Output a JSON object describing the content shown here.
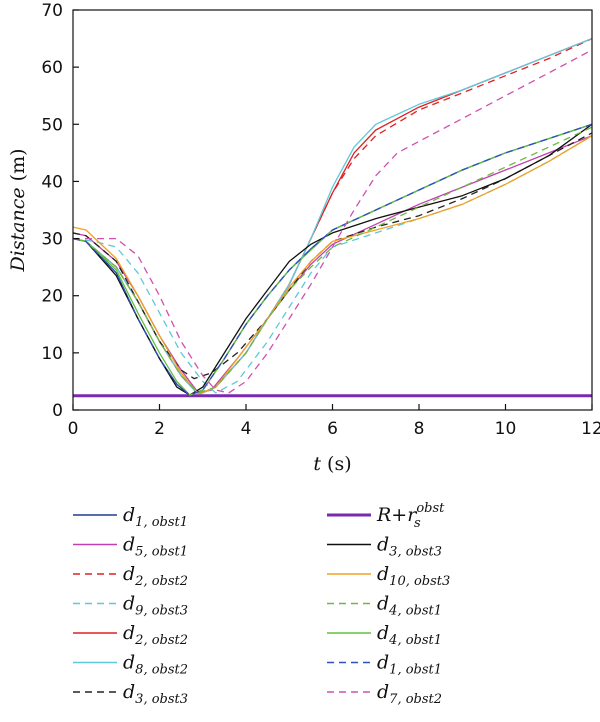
{
  "chart_data": {
    "type": "line",
    "title": "",
    "xlabel": {
      "symbol": "t",
      "unit": "(s)"
    },
    "ylabel": {
      "text": "Distance",
      "unit": "(m)"
    },
    "xlim": [
      0,
      12
    ],
    "ylim": [
      0,
      70
    ],
    "xticks": [
      0,
      2,
      4,
      6,
      8,
      10,
      12
    ],
    "yticks": [
      0,
      10,
      20,
      30,
      40,
      50,
      60,
      70
    ],
    "grid": false,
    "legend_position": "bottom",
    "series": [
      {
        "name": "d1,obst1",
        "label": "d",
        "sub": "1, obst1",
        "color": "#1f3f8f",
        "dash": "solid",
        "points": [
          [
            0,
            30
          ],
          [
            0.3,
            29.5
          ],
          [
            1,
            24
          ],
          [
            1.5,
            16
          ],
          [
            2,
            9
          ],
          [
            2.4,
            4.5
          ],
          [
            2.7,
            2.6
          ],
          [
            3,
            3.5
          ],
          [
            3.5,
            9
          ],
          [
            4,
            15
          ],
          [
            4.5,
            20
          ],
          [
            5,
            24.5
          ],
          [
            5.5,
            28.2
          ],
          [
            6,
            31.5
          ],
          [
            7,
            35
          ],
          [
            8,
            38.5
          ],
          [
            9,
            42
          ],
          [
            10,
            45
          ],
          [
            11,
            47.5
          ],
          [
            12,
            50
          ]
        ]
      },
      {
        "name": "d5,obst1",
        "label": "d",
        "sub": "5, obst1",
        "color": "#c040b0",
        "dash": "solid",
        "points": [
          [
            0,
            31
          ],
          [
            0.3,
            30.5
          ],
          [
            1,
            26
          ],
          [
            1.5,
            20
          ],
          [
            2,
            13
          ],
          [
            2.5,
            7
          ],
          [
            2.9,
            3
          ],
          [
            3.2,
            3.5
          ],
          [
            3.8,
            9
          ],
          [
            4.5,
            16
          ],
          [
            5,
            21
          ],
          [
            5.5,
            25.5
          ],
          [
            6,
            29
          ],
          [
            7,
            32.5
          ],
          [
            8,
            36
          ],
          [
            9,
            39
          ],
          [
            10,
            42
          ],
          [
            11,
            45
          ],
          [
            12,
            48
          ]
        ]
      },
      {
        "name": "d2,obst2",
        "label": "d",
        "sub": "2, obst2",
        "color": "#e02020",
        "dash": "dash",
        "points": [
          [
            0,
            30
          ],
          [
            0.3,
            29.5
          ],
          [
            1,
            25
          ],
          [
            1.5,
            19
          ],
          [
            2,
            12
          ],
          [
            2.5,
            6
          ],
          [
            2.9,
            2.8
          ],
          [
            3.3,
            4
          ],
          [
            4,
            10
          ],
          [
            4.5,
            16
          ],
          [
            5,
            22
          ],
          [
            5.5,
            30
          ],
          [
            6,
            38
          ],
          [
            6.5,
            44
          ],
          [
            7,
            48
          ],
          [
            8,
            52.5
          ],
          [
            9,
            55.5
          ],
          [
            10,
            58.5
          ],
          [
            11,
            61.5
          ],
          [
            12,
            65
          ]
        ]
      },
      {
        "name": "d9,obst3",
        "label": "d",
        "sub": "9, obst3",
        "color": "#5ec8dc",
        "dash": "dash",
        "points": [
          [
            0,
            30
          ],
          [
            0.5,
            29.5
          ],
          [
            1,
            28.5
          ],
          [
            1.5,
            24
          ],
          [
            2,
            17
          ],
          [
            2.5,
            10
          ],
          [
            3,
            5
          ],
          [
            3.3,
            3
          ],
          [
            3.8,
            5
          ],
          [
            4.5,
            12
          ],
          [
            5,
            18
          ],
          [
            5.5,
            24
          ],
          [
            6,
            28.5
          ],
          [
            7,
            31
          ],
          [
            8,
            33.5
          ],
          [
            9,
            36
          ],
          [
            10,
            39.5
          ],
          [
            11,
            43.5
          ],
          [
            12,
            48
          ]
        ]
      },
      {
        "name": "d2,obst2",
        "label": "d",
        "sub": "2, obst2",
        "color": "#e02020",
        "dash": "solid",
        "points": [
          [
            0,
            30
          ],
          [
            0.3,
            29.5
          ],
          [
            1,
            25
          ],
          [
            1.5,
            19
          ],
          [
            2,
            12
          ],
          [
            2.5,
            6
          ],
          [
            2.9,
            2.7
          ],
          [
            3.3,
            4
          ],
          [
            4,
            10
          ],
          [
            4.5,
            16
          ],
          [
            5,
            22
          ],
          [
            5.5,
            30
          ],
          [
            6,
            38
          ],
          [
            6.5,
            45
          ],
          [
            7,
            49
          ],
          [
            8,
            53
          ],
          [
            9,
            56
          ],
          [
            10,
            59
          ],
          [
            11,
            62
          ],
          [
            12,
            65
          ]
        ]
      },
      {
        "name": "d8,obst2",
        "label": "d",
        "sub": "8, obst2",
        "color": "#5ec8dc",
        "dash": "solid",
        "points": [
          [
            0,
            30
          ],
          [
            0.3,
            29.5
          ],
          [
            1,
            25
          ],
          [
            1.5,
            19
          ],
          [
            2,
            12
          ],
          [
            2.5,
            6
          ],
          [
            2.9,
            2.7
          ],
          [
            3.3,
            4
          ],
          [
            4,
            10
          ],
          [
            4.5,
            16
          ],
          [
            5,
            22
          ],
          [
            5.5,
            30
          ],
          [
            6,
            39
          ],
          [
            6.5,
            46
          ],
          [
            7,
            50
          ],
          [
            8,
            53.5
          ],
          [
            9,
            56
          ],
          [
            10,
            59
          ],
          [
            11,
            62
          ],
          [
            12,
            65
          ]
        ]
      },
      {
        "name": "d3,obst3",
        "label": "d",
        "sub": "3, obst3",
        "color": "#222222",
        "dash": "dash",
        "points": [
          [
            0,
            31
          ],
          [
            0.3,
            30.5
          ],
          [
            1,
            26
          ],
          [
            1.5,
            19
          ],
          [
            2,
            12
          ],
          [
            2.5,
            7
          ],
          [
            2.8,
            5.5
          ],
          [
            3.2,
            6.5
          ],
          [
            3.8,
            10
          ],
          [
            4.5,
            16
          ],
          [
            5,
            21
          ],
          [
            5.5,
            26
          ],
          [
            6,
            29.5
          ],
          [
            7,
            32
          ],
          [
            8,
            34
          ],
          [
            9,
            37
          ],
          [
            10,
            40.5
          ],
          [
            11,
            44.5
          ],
          [
            12,
            48.5
          ]
        ]
      },
      {
        "name": "R+rs_obst",
        "label": "R+r",
        "sub": "s",
        "sup": "obst",
        "color": "#7a2ab0",
        "dash": "solid",
        "width": 3,
        "points": [
          [
            0,
            2.5
          ],
          [
            12,
            2.5
          ]
        ]
      },
      {
        "name": "d3,obst3",
        "label": "d",
        "sub": "3, obst3",
        "color": "#111111",
        "dash": "solid",
        "points": [
          [
            0,
            30
          ],
          [
            0.3,
            29.5
          ],
          [
            1,
            23.5
          ],
          [
            1.5,
            16
          ],
          [
            2,
            9
          ],
          [
            2.4,
            4
          ],
          [
            2.7,
            2.6
          ],
          [
            3,
            4
          ],
          [
            3.5,
            10
          ],
          [
            4,
            16
          ],
          [
            4.5,
            21
          ],
          [
            5,
            26
          ],
          [
            5.5,
            29
          ],
          [
            6,
            31
          ],
          [
            7,
            33.5
          ],
          [
            8,
            35.5
          ],
          [
            9,
            37.5
          ],
          [
            10,
            40.5
          ],
          [
            11,
            44.5
          ],
          [
            12,
            50
          ]
        ]
      },
      {
        "name": "d10,obst3",
        "label": "d",
        "sub": "10, obst3",
        "color": "#f0a020",
        "dash": "solid",
        "points": [
          [
            0,
            32
          ],
          [
            0.3,
            31.5
          ],
          [
            1,
            26.5
          ],
          [
            1.5,
            20
          ],
          [
            2,
            13
          ],
          [
            2.5,
            6.5
          ],
          [
            2.9,
            2.8
          ],
          [
            3.3,
            4
          ],
          [
            3.8,
            9
          ],
          [
            4.5,
            16
          ],
          [
            5,
            21.5
          ],
          [
            5.5,
            26
          ],
          [
            6,
            29.5
          ],
          [
            7,
            31.5
          ],
          [
            8,
            33.5
          ],
          [
            9,
            36
          ],
          [
            10,
            39.5
          ],
          [
            11,
            43.5
          ],
          [
            12,
            48
          ]
        ]
      },
      {
        "name": "d4,obst1",
        "label": "d",
        "sub": "4, obst1",
        "color": "#70b840",
        "dash": "dash",
        "points": [
          [
            0,
            30
          ],
          [
            0.3,
            29.5
          ],
          [
            1,
            25
          ],
          [
            1.5,
            19
          ],
          [
            2,
            12
          ],
          [
            2.5,
            6
          ],
          [
            2.9,
            3
          ],
          [
            3.3,
            4
          ],
          [
            4,
            10
          ],
          [
            4.5,
            16
          ],
          [
            5,
            21
          ],
          [
            5.5,
            25
          ],
          [
            6,
            28.5
          ],
          [
            7,
            32
          ],
          [
            8,
            35.5
          ],
          [
            9,
            39
          ],
          [
            10,
            42.5
          ],
          [
            11,
            46
          ],
          [
            12,
            49.5
          ]
        ]
      },
      {
        "name": "d4,obst1",
        "label": "d",
        "sub": "4, obst1",
        "color": "#60c040",
        "dash": "solid",
        "points": [
          [
            0,
            30
          ],
          [
            0.3,
            29.5
          ],
          [
            1,
            24.5
          ],
          [
            1.5,
            17
          ],
          [
            2,
            10
          ],
          [
            2.4,
            5
          ],
          [
            2.7,
            2.6
          ],
          [
            3,
            3.5
          ],
          [
            3.5,
            9
          ],
          [
            4,
            15
          ],
          [
            4.5,
            20
          ],
          [
            5,
            24.5
          ],
          [
            5.5,
            28
          ],
          [
            6,
            31.5
          ],
          [
            7,
            35
          ],
          [
            8,
            38.5
          ],
          [
            9,
            42
          ],
          [
            10,
            45
          ],
          [
            11,
            47.5
          ],
          [
            12,
            50
          ]
        ]
      },
      {
        "name": "d1,obst1",
        "label": "d",
        "sub": "1, obst1",
        "color": "#3050c0",
        "dash": "dash",
        "points": [
          [
            0,
            30
          ],
          [
            0.3,
            29.5
          ],
          [
            1,
            24
          ],
          [
            1.5,
            16
          ],
          [
            2,
            9
          ],
          [
            2.4,
            4.5
          ],
          [
            2.7,
            2.6
          ],
          [
            3,
            3.5
          ],
          [
            3.5,
            9
          ],
          [
            4,
            15
          ],
          [
            4.5,
            20
          ],
          [
            5,
            24.5
          ],
          [
            5.5,
            28.2
          ],
          [
            6,
            31.5
          ],
          [
            7,
            35
          ],
          [
            8,
            38.5
          ],
          [
            9,
            42
          ],
          [
            10,
            45
          ],
          [
            11,
            47.5
          ],
          [
            12,
            50
          ]
        ]
      },
      {
        "name": "d7,obst2",
        "label": "d",
        "sub": "7, obst2",
        "color": "#d050b0",
        "dash": "dash",
        "points": [
          [
            0,
            30
          ],
          [
            0.5,
            30
          ],
          [
            1,
            30
          ],
          [
            1.5,
            27
          ],
          [
            2,
            20
          ],
          [
            2.5,
            12
          ],
          [
            3,
            6
          ],
          [
            3.3,
            3.5
          ],
          [
            3.6,
            3
          ],
          [
            4,
            5
          ],
          [
            4.5,
            10
          ],
          [
            5,
            16
          ],
          [
            5.5,
            22
          ],
          [
            6,
            28.5
          ],
          [
            6.5,
            35
          ],
          [
            7,
            41
          ],
          [
            7.5,
            45
          ],
          [
            8,
            47
          ],
          [
            9,
            51
          ],
          [
            10,
            55
          ],
          [
            11,
            59
          ],
          [
            12,
            63
          ]
        ]
      }
    ],
    "legend_order": [
      0,
      7,
      1,
      8,
      2,
      9,
      3,
      10,
      4,
      11,
      5,
      12,
      6,
      13
    ]
  }
}
